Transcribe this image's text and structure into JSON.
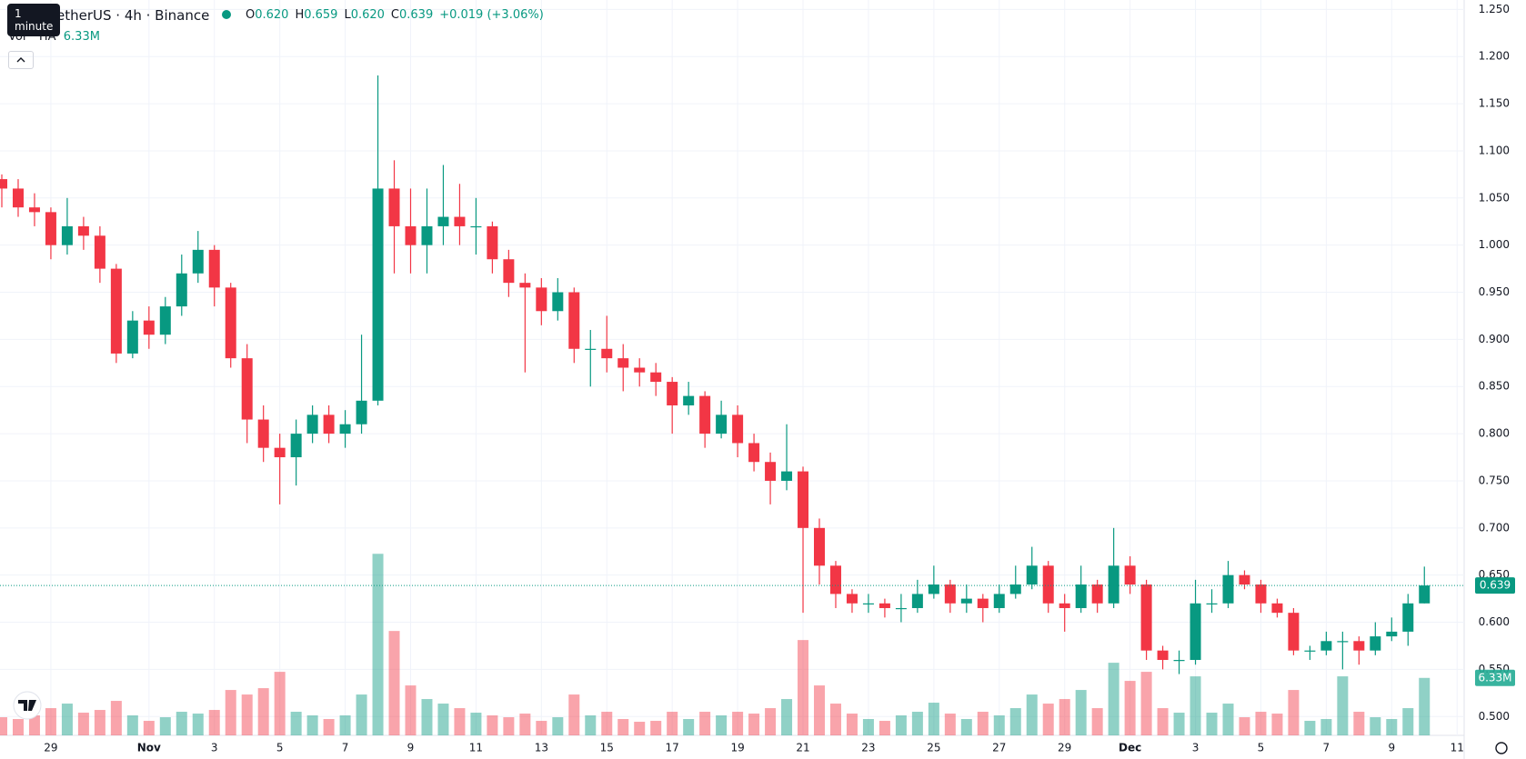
{
  "header": {
    "tooltip": "1 minute",
    "symbol": "etherUS · 4h · Binance",
    "ohlc": [
      [
        "O",
        "0.620"
      ],
      [
        "H",
        "0.659"
      ],
      [
        "L",
        "0.620"
      ],
      [
        "C",
        "0.639"
      ]
    ],
    "change": "+0.019 (+3.06%)",
    "vol_label": "Vol · TIA",
    "vol_value": "6.33M"
  },
  "chart_data": {
    "type": "candlestick",
    "up_color": "#089981",
    "down_color": "#f23645",
    "grid": true,
    "categories": [
      null,
      null,
      null,
      "29",
      null,
      null,
      null,
      null,
      null,
      "Nov",
      null,
      null,
      null,
      "3",
      null,
      null,
      null,
      "5",
      null,
      null,
      null,
      "7",
      null,
      null,
      null,
      "9",
      null,
      null,
      null,
      "11",
      null,
      null,
      null,
      "13",
      null,
      null,
      null,
      "15",
      null,
      null,
      null,
      "17",
      null,
      null,
      null,
      "19",
      null,
      null,
      null,
      "21",
      null,
      null,
      null,
      "23",
      null,
      null,
      null,
      "25",
      null,
      null,
      null,
      "27",
      null,
      null,
      null,
      "29",
      null,
      null,
      null,
      "Dec",
      null,
      null,
      null,
      "3",
      null,
      null,
      null,
      "5",
      null,
      null,
      null,
      "7",
      null,
      null,
      null,
      "9",
      null,
      null,
      null,
      "11"
    ],
    "open": [
      1.07,
      1.06,
      1.04,
      1.035,
      1.0,
      1.02,
      1.01,
      0.975,
      0.885,
      0.92,
      0.905,
      0.935,
      0.97,
      0.995,
      0.955,
      0.88,
      0.815,
      0.785,
      0.775,
      0.8,
      0.82,
      0.8,
      0.81,
      0.835,
      1.06,
      1.02,
      1.0,
      1.02,
      1.03,
      1.02,
      1.02,
      0.985,
      0.96,
      0.955,
      0.93,
      0.95,
      0.89,
      0.89,
      0.88,
      0.87,
      0.865,
      0.855,
      0.83,
      0.84,
      0.8,
      0.82,
      0.79,
      0.77,
      0.75,
      0.76,
      0.7,
      0.66,
      0.63,
      0.62,
      0.62,
      0.615,
      0.615,
      0.63,
      0.64,
      0.62,
      0.625,
      0.615,
      0.63,
      0.64,
      0.66,
      0.62,
      0.615,
      0.64,
      0.62,
      0.66,
      0.64,
      0.57,
      0.56,
      0.56,
      0.62,
      0.62,
      0.65,
      0.64,
      0.62,
      0.61,
      0.57,
      0.57,
      0.58,
      0.58,
      0.57,
      0.585,
      0.59,
      0.62,
      null,
      null
    ],
    "high": [
      1.075,
      1.07,
      1.055,
      1.04,
      1.05,
      1.03,
      1.02,
      0.98,
      0.93,
      0.935,
      0.945,
      0.99,
      1.015,
      1.0,
      0.96,
      0.895,
      0.83,
      0.8,
      0.815,
      0.83,
      0.83,
      0.825,
      0.905,
      1.18,
      1.09,
      1.06,
      1.06,
      1.085,
      1.065,
      1.05,
      1.025,
      0.995,
      0.97,
      0.965,
      0.965,
      0.955,
      0.91,
      0.925,
      0.895,
      0.88,
      0.875,
      0.86,
      0.855,
      0.845,
      0.835,
      0.83,
      0.8,
      0.78,
      0.81,
      0.765,
      0.71,
      0.665,
      0.635,
      0.63,
      0.625,
      0.63,
      0.645,
      0.66,
      0.645,
      0.64,
      0.63,
      0.64,
      0.66,
      0.68,
      0.665,
      0.63,
      0.66,
      0.645,
      0.7,
      0.67,
      0.645,
      0.575,
      0.57,
      0.645,
      0.635,
      0.665,
      0.655,
      0.645,
      0.625,
      0.615,
      0.575,
      0.59,
      0.59,
      0.585,
      0.6,
      0.605,
      0.63,
      0.659,
      null,
      null
    ],
    "low": [
      1.04,
      1.03,
      1.02,
      0.985,
      0.99,
      0.995,
      0.96,
      0.875,
      0.88,
      0.89,
      0.895,
      0.925,
      0.96,
      0.935,
      0.87,
      0.79,
      0.77,
      0.725,
      0.745,
      0.79,
      0.79,
      0.785,
      0.8,
      0.83,
      0.97,
      0.97,
      0.97,
      1.0,
      1.0,
      0.99,
      0.97,
      0.945,
      0.865,
      0.915,
      0.92,
      0.875,
      0.85,
      0.865,
      0.845,
      0.85,
      0.84,
      0.8,
      0.82,
      0.785,
      0.795,
      0.775,
      0.76,
      0.725,
      0.74,
      0.61,
      0.64,
      0.615,
      0.61,
      0.61,
      0.605,
      0.6,
      0.61,
      0.625,
      0.61,
      0.61,
      0.6,
      0.61,
      0.625,
      0.635,
      0.61,
      0.59,
      0.61,
      0.61,
      0.615,
      0.63,
      0.56,
      0.55,
      0.545,
      0.555,
      0.61,
      0.615,
      0.635,
      0.61,
      0.605,
      0.565,
      0.56,
      0.565,
      0.55,
      0.555,
      0.565,
      0.58,
      0.575,
      0.62,
      null,
      null
    ],
    "close": [
      1.06,
      1.04,
      1.035,
      1.0,
      1.02,
      1.01,
      0.975,
      0.885,
      0.92,
      0.905,
      0.935,
      0.97,
      0.995,
      0.955,
      0.88,
      0.815,
      0.785,
      0.775,
      0.8,
      0.82,
      0.8,
      0.81,
      0.835,
      1.06,
      1.02,
      1.0,
      1.02,
      1.03,
      1.02,
      1.02,
      0.985,
      0.96,
      0.955,
      0.93,
      0.95,
      0.89,
      0.89,
      0.88,
      0.87,
      0.865,
      0.855,
      0.83,
      0.84,
      0.8,
      0.82,
      0.79,
      0.77,
      0.75,
      0.76,
      0.7,
      0.66,
      0.63,
      0.62,
      0.62,
      0.615,
      0.615,
      0.63,
      0.64,
      0.62,
      0.625,
      0.615,
      0.63,
      0.64,
      0.66,
      0.62,
      0.615,
      0.64,
      0.62,
      0.66,
      0.64,
      0.57,
      0.56,
      0.56,
      0.62,
      0.62,
      0.65,
      0.64,
      0.62,
      0.61,
      0.57,
      0.57,
      0.58,
      0.58,
      0.57,
      0.585,
      0.59,
      0.62,
      0.639,
      null,
      null
    ],
    "volume": [
      2.0,
      1.8,
      2.2,
      3.0,
      3.5,
      2.5,
      2.8,
      3.8,
      2.2,
      1.6,
      2.0,
      2.6,
      2.4,
      2.8,
      5.0,
      4.5,
      5.2,
      7.0,
      2.6,
      2.2,
      1.8,
      2.2,
      4.5,
      20.0,
      11.5,
      5.5,
      4.0,
      3.5,
      3.0,
      2.5,
      2.2,
      2.0,
      2.4,
      1.6,
      2.0,
      4.5,
      2.2,
      2.6,
      1.8,
      1.5,
      1.6,
      2.6,
      1.8,
      2.6,
      2.2,
      2.6,
      2.4,
      3.0,
      4.0,
      10.5,
      5.5,
      3.5,
      2.4,
      1.8,
      1.6,
      2.2,
      2.6,
      3.6,
      2.4,
      1.8,
      2.6,
      2.2,
      3.0,
      4.5,
      3.5,
      4.0,
      5.0,
      3.0,
      8.0,
      6.0,
      7.0,
      3.0,
      2.5,
      6.5,
      2.5,
      3.5,
      2.0,
      2.6,
      2.4,
      5.0,
      1.6,
      1.8,
      6.5,
      2.6,
      2.0,
      1.8,
      3.0,
      6.33,
      null,
      null
    ],
    "vlim": [
      0,
      81
    ],
    "ylim": [
      0.48,
      1.26
    ],
    "yticks": [
      {
        "value": 0.5,
        "label": "0.500"
      },
      {
        "value": 0.55,
        "label": "0.550"
      },
      {
        "value": 0.6,
        "label": "0.600"
      },
      {
        "value": 0.65,
        "label": "0.650"
      },
      {
        "value": 0.7,
        "label": "0.700"
      },
      {
        "value": 0.75,
        "label": "0.750"
      },
      {
        "value": 0.8,
        "label": "0.800"
      },
      {
        "value": 0.85,
        "label": "0.850"
      },
      {
        "value": 0.9,
        "label": "0.900"
      },
      {
        "value": 0.95,
        "label": "0.950"
      },
      {
        "value": 1.0,
        "label": "1.000"
      },
      {
        "value": 1.05,
        "label": "1.050"
      },
      {
        "value": 1.1,
        "label": "1.100"
      },
      {
        "value": 1.15,
        "label": "1.150"
      },
      {
        "value": 1.2,
        "label": "1.200"
      },
      {
        "value": 1.25,
        "label": "1.250"
      }
    ],
    "last_price_label": "0.639"
  }
}
